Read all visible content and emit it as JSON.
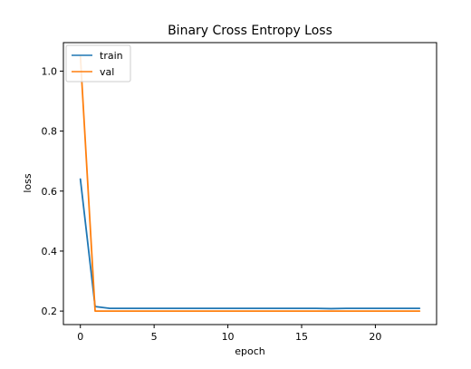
{
  "chart_data": {
    "type": "line",
    "title": "Binary Cross Entropy Loss",
    "xlabel": "epoch",
    "ylabel": "loss",
    "xlim": [
      -1.15,
      24.15
    ],
    "ylim": [
      0.155,
      1.095
    ],
    "xticks": [
      0,
      5,
      10,
      15,
      20
    ],
    "yticks": [
      0.2,
      0.4,
      0.6,
      0.8,
      1.0
    ],
    "xtick_labels": [
      "0",
      "5",
      "10",
      "15",
      "20"
    ],
    "ytick_labels": [
      "0.2",
      "0.4",
      "0.6",
      "0.8",
      "1.0"
    ],
    "grid": false,
    "legend": {
      "placement": "upper-left"
    },
    "x": [
      0,
      1,
      2,
      3,
      4,
      5,
      6,
      7,
      8,
      9,
      10,
      11,
      12,
      13,
      14,
      15,
      16,
      17,
      18,
      19,
      20,
      21,
      22,
      23
    ],
    "series": [
      {
        "name": "train",
        "color": "#1f77b4",
        "values": [
          0.64,
          0.215,
          0.209,
          0.209,
          0.209,
          0.209,
          0.209,
          0.209,
          0.209,
          0.209,
          0.209,
          0.209,
          0.209,
          0.209,
          0.209,
          0.209,
          0.209,
          0.208,
          0.209,
          0.209,
          0.209,
          0.209,
          0.209,
          0.209
        ]
      },
      {
        "name": "val",
        "color": "#ff7f0e",
        "values": [
          1.05,
          0.2,
          0.2,
          0.2,
          0.2,
          0.2,
          0.2,
          0.2,
          0.2,
          0.2,
          0.2,
          0.2,
          0.2,
          0.2,
          0.2,
          0.2,
          0.2,
          0.2,
          0.2,
          0.2,
          0.2,
          0.2,
          0.2,
          0.2
        ]
      }
    ]
  }
}
